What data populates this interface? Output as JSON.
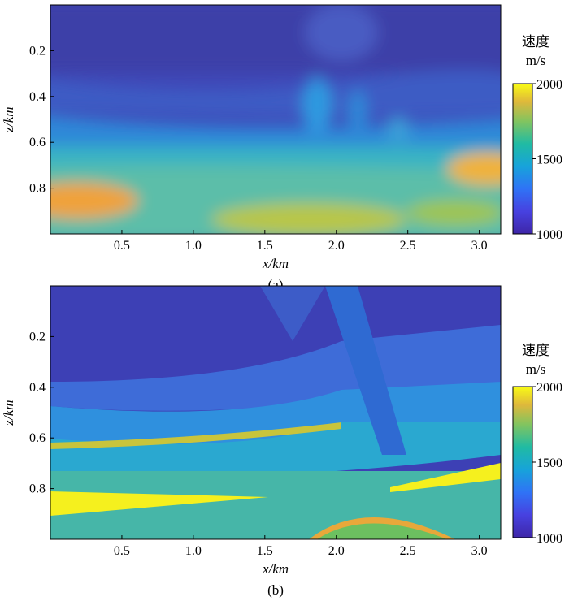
{
  "chart_data": [
    {
      "type": "heatmap",
      "caption": "(a)",
      "title": "",
      "xlabel": "x/km",
      "ylabel": "z/km",
      "xlim": [
        0,
        3.15
      ],
      "ylim": [
        0,
        1.0
      ],
      "y_reversed": true,
      "x_ticks": [
        "0.5",
        "1.0",
        "1.5",
        "2.0",
        "2.5",
        "3.0"
      ],
      "y_ticks": [
        "0.2",
        "0.4",
        "0.6",
        "0.8"
      ],
      "colorbar": {
        "title": "速度",
        "unit": "m/s",
        "min": 1000,
        "max": 2000,
        "ticks": [
          "1000",
          "1500",
          "2000"
        ],
        "colormap": "parula"
      },
      "description_values": "smooth velocity field: ~1100 near surface, ~1400-1600 from 0.6 km depth, high-velocity zones ~1750-1850 near z=0.85 at left and z=0.72 at right"
    },
    {
      "type": "heatmap",
      "caption": "(b)",
      "title": "",
      "xlabel": "x/km",
      "ylabel": "z/km",
      "xlim": [
        0,
        3.15
      ],
      "ylim": [
        0,
        1.0
      ],
      "y_reversed": true,
      "x_ticks": [
        "0.5",
        "1.0",
        "1.5",
        "2.0",
        "2.5",
        "3.0"
      ],
      "y_ticks": [
        "0.2",
        "0.4",
        "0.6",
        "0.8"
      ],
      "colorbar": {
        "title": "速度",
        "unit": "m/s",
        "min": 1000,
        "max": 2000,
        "ticks": [
          "1000",
          "1500",
          "2000"
        ],
        "colormap": "parula"
      },
      "description_values": "layered true velocity model (Marmousi-like): ~1100 top, faulted layers 1300-1700, high-velocity yellow wedge ~2000 near z=0.85"
    }
  ]
}
